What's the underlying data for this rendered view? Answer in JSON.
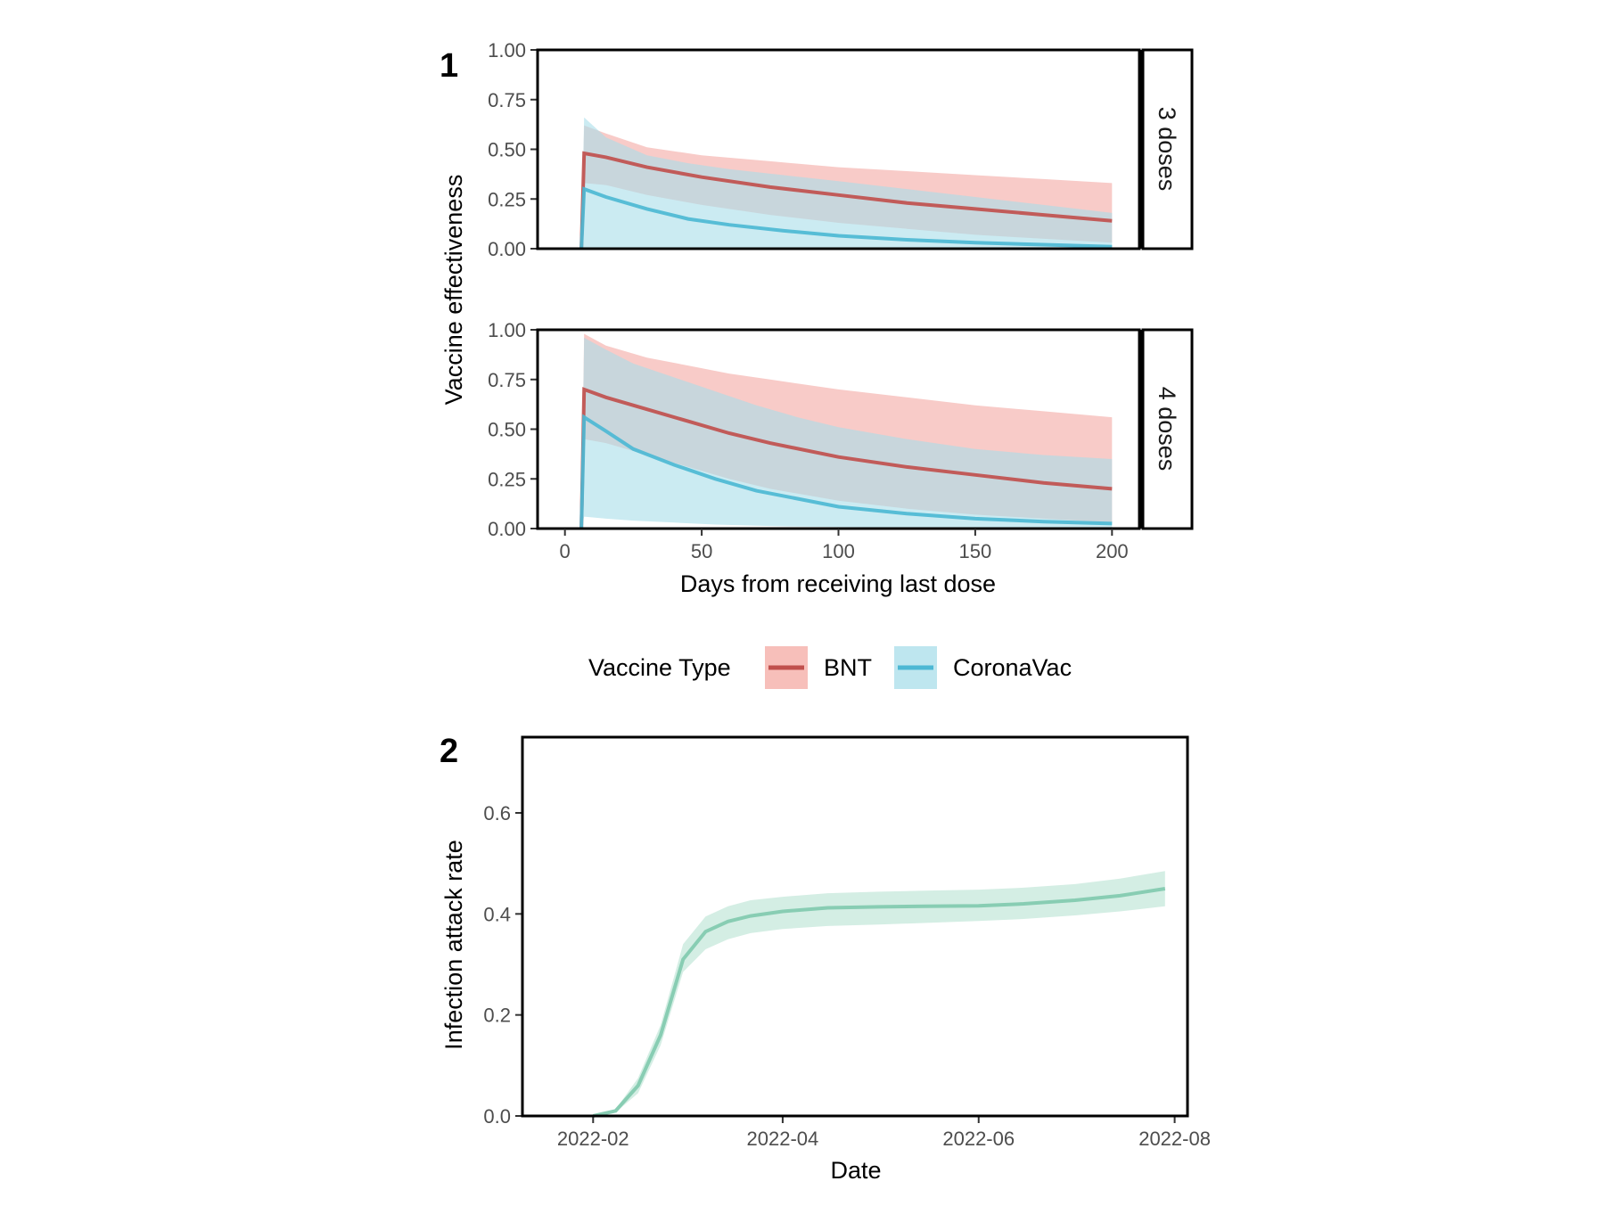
{
  "colors": {
    "bnt_line": "#C0504D",
    "bnt_band": "#F4A9A3",
    "coronavac_line": "#4DB8D4",
    "coronavac_band": "#A8DDEA",
    "attack_line": "#88CDB3",
    "attack_band": "#CDEBDF"
  },
  "chart_data": [
    {
      "panel_label": "1",
      "type": "line",
      "ylabel": "Vaccine effectiveness",
      "xlabel": "Days from receiving last dose",
      "xlim": [
        -10,
        210
      ],
      "ylim": [
        0,
        1
      ],
      "xticks": [
        "0",
        "50",
        "100",
        "150",
        "200"
      ],
      "xtick_values": [
        0,
        50,
        100,
        150,
        200
      ],
      "yticks": [
        "0.00",
        "0.25",
        "0.50",
        "0.75",
        "1.00"
      ],
      "ytick_values": [
        0,
        0.25,
        0.5,
        0.75,
        1.0
      ],
      "legend": {
        "title": "Vaccine Type",
        "position": "bottom",
        "entries": [
          "BNT",
          "CoronaVac"
        ]
      },
      "facets": [
        {
          "strip": "3 doses",
          "series": [
            {
              "name": "BNT",
              "x": [
                6,
                7,
                15,
                30,
                50,
                75,
                100,
                125,
                150,
                175,
                200
              ],
              "y": [
                0,
                0.48,
                0.46,
                0.41,
                0.36,
                0.31,
                0.27,
                0.23,
                0.2,
                0.17,
                0.14
              ],
              "lower": [
                0,
                0.33,
                0.32,
                0.27,
                0.22,
                0.17,
                0.13,
                0.1,
                0.07,
                0.05,
                0.03
              ],
              "upper": [
                0,
                0.62,
                0.58,
                0.51,
                0.47,
                0.44,
                0.41,
                0.39,
                0.37,
                0.35,
                0.33
              ]
            },
            {
              "name": "CoronaVac",
              "x": [
                6,
                7,
                15,
                30,
                45,
                60,
                80,
                100,
                125,
                150,
                175,
                200
              ],
              "y": [
                0,
                0.3,
                0.26,
                0.2,
                0.15,
                0.12,
                0.09,
                0.065,
                0.045,
                0.03,
                0.02,
                0.01
              ],
              "lower": [
                0,
                0,
                0,
                0,
                0,
                0,
                0,
                0,
                0,
                0,
                0,
                0
              ],
              "upper": [
                0,
                0.66,
                0.56,
                0.47,
                0.43,
                0.4,
                0.37,
                0.34,
                0.3,
                0.26,
                0.22,
                0.18
              ]
            }
          ]
        },
        {
          "strip": "4 doses",
          "series": [
            {
              "name": "BNT",
              "x": [
                6,
                7,
                15,
                30,
                45,
                60,
                75,
                100,
                125,
                150,
                175,
                200
              ],
              "y": [
                0,
                0.7,
                0.66,
                0.6,
                0.54,
                0.48,
                0.43,
                0.36,
                0.31,
                0.27,
                0.23,
                0.2
              ],
              "lower": [
                0,
                0.45,
                0.43,
                0.37,
                0.31,
                0.25,
                0.2,
                0.14,
                0.1,
                0.07,
                0.05,
                0.03
              ],
              "upper": [
                0,
                0.98,
                0.92,
                0.86,
                0.82,
                0.78,
                0.75,
                0.7,
                0.66,
                0.62,
                0.59,
                0.56
              ]
            },
            {
              "name": "CoronaVac",
              "x": [
                6,
                7,
                15,
                25,
                40,
                55,
                70,
                85,
                100,
                125,
                150,
                175,
                200
              ],
              "y": [
                0,
                0.56,
                0.49,
                0.4,
                0.32,
                0.25,
                0.19,
                0.15,
                0.11,
                0.075,
                0.05,
                0.035,
                0.025
              ],
              "lower": [
                0,
                0.06,
                0.05,
                0.04,
                0.03,
                0.02,
                0.015,
                0.01,
                0.008,
                0.005,
                0.003,
                0.002,
                0.001
              ],
              "upper": [
                0,
                0.96,
                0.9,
                0.83,
                0.76,
                0.69,
                0.62,
                0.56,
                0.51,
                0.45,
                0.4,
                0.37,
                0.35
              ]
            }
          ]
        }
      ]
    },
    {
      "panel_label": "2",
      "type": "line",
      "ylabel": "Infection attack rate",
      "xlabel": "Date",
      "x_unit": "date",
      "xlim": [
        "2022-01-10",
        "2022-08-05"
      ],
      "ylim": [
        0,
        0.75
      ],
      "xticks": [
        "2022-02",
        "2022-04",
        "2022-06",
        "2022-08"
      ],
      "xtick_values": [
        "2022-02-01",
        "2022-04-01",
        "2022-06-01",
        "2022-08-01"
      ],
      "yticks": [
        "0.0",
        "0.2",
        "0.4",
        "0.6"
      ],
      "ytick_values": [
        0,
        0.2,
        0.4,
        0.6
      ],
      "series": [
        {
          "x": [
            "2022-02-01",
            "2022-02-08",
            "2022-02-15",
            "2022-02-22",
            "2022-03-01",
            "2022-03-08",
            "2022-03-15",
            "2022-03-22",
            "2022-04-01",
            "2022-04-15",
            "2022-05-01",
            "2022-05-15",
            "2022-06-01",
            "2022-06-15",
            "2022-07-01",
            "2022-07-15",
            "2022-07-29"
          ],
          "y": [
            0.0,
            0.01,
            0.06,
            0.16,
            0.31,
            0.365,
            0.385,
            0.396,
            0.405,
            0.412,
            0.414,
            0.415,
            0.416,
            0.42,
            0.427,
            0.436,
            0.45
          ],
          "lower": [
            0.0,
            0.007,
            0.045,
            0.14,
            0.285,
            0.33,
            0.35,
            0.362,
            0.37,
            0.376,
            0.379,
            0.382,
            0.386,
            0.39,
            0.397,
            0.405,
            0.415
          ],
          "upper": [
            0.0,
            0.013,
            0.075,
            0.18,
            0.34,
            0.395,
            0.415,
            0.427,
            0.434,
            0.441,
            0.444,
            0.446,
            0.448,
            0.452,
            0.459,
            0.47,
            0.485
          ]
        }
      ]
    }
  ]
}
